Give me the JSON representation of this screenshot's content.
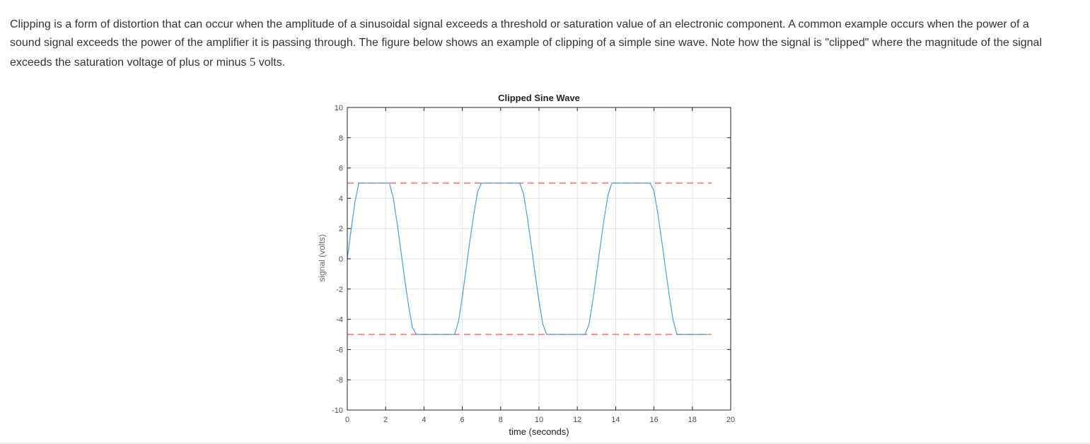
{
  "intro": {
    "text_before": "Clipping is a form of distortion that can occur when the amplitude of a sinusoidal signal exceeds a threshold or saturation value of an electronic component. A common example occurs when the power of a sound signal exceeds the power of the amplifier it is passing through. The figure below shows an example of clipping of a simple sine wave. Note how the signal is \"clipped\" where the magnitude of the signal exceeds the saturation voltage of plus or minus ",
    "value": "5",
    "text_after": " volts."
  },
  "colors": {
    "signal": "#4a9fd6",
    "threshold": "#ff4d4d",
    "grid": "#e3e3e3",
    "axis": "#262626"
  },
  "chart_data": {
    "type": "line",
    "title": "Clipped Sine Wave",
    "xlabel": "time (seconds)",
    "ylabel": "signal (volts)",
    "xlim": [
      0,
      20
    ],
    "ylim": [
      -10,
      10
    ],
    "xticks": [
      "0",
      "2",
      "4",
      "6",
      "8",
      "10",
      "12",
      "14",
      "16",
      "18",
      "20"
    ],
    "yticks": [
      "10",
      "8",
      "6",
      "4",
      "2",
      "0",
      "-2",
      "-4",
      "-6",
      "-8",
      "-10"
    ],
    "grid": true,
    "series": [
      {
        "style": "solid",
        "x": [
          0,
          0.2,
          0.4,
          0.6,
          0.8,
          1.0,
          1.2,
          1.4,
          1.6,
          1.8,
          2.0,
          2.2,
          2.4,
          2.6,
          2.8,
          3.0,
          3.2,
          3.4,
          3.6,
          3.8,
          4.0,
          4.2,
          4.4,
          4.6,
          4.8,
          5.0,
          5.2,
          5.4,
          5.6,
          5.8,
          6.0,
          6.2,
          6.4,
          6.6,
          6.8,
          7.0,
          7.2,
          7.4,
          7.6,
          7.8,
          8.0,
          8.2,
          8.4,
          8.6,
          8.8,
          9.0,
          9.2,
          9.4,
          9.6,
          9.8,
          10.0,
          10.2,
          10.4,
          10.6,
          10.8,
          11.0,
          11.2,
          11.4,
          11.6,
          11.8,
          12.0,
          12.2,
          12.4,
          12.6,
          12.8,
          13.0,
          13.2,
          13.4,
          13.6,
          13.8,
          14.0,
          14.2,
          14.4,
          14.6,
          14.8,
          15.0,
          15.2,
          15.4,
          15.6,
          15.8,
          16.0,
          16.2,
          16.4,
          16.6,
          16.8,
          17.0,
          17.2,
          17.4,
          17.6,
          17.8,
          18.0,
          18.2,
          18.4,
          18.6,
          18.8
        ],
        "y": [
          0,
          1.93,
          3.75,
          5,
          5,
          5,
          5,
          5,
          5,
          5,
          5,
          5,
          4.02,
          2.34,
          0.48,
          -1.4,
          -3.12,
          -4.55,
          -5,
          -5,
          -5,
          -5,
          -5,
          -5,
          -5,
          -5,
          -5,
          -5,
          -5,
          -4.14,
          -2.51,
          -0.67,
          1.22,
          2.96,
          4.44,
          5,
          5,
          5,
          5,
          5,
          5,
          5,
          5,
          5,
          5,
          5,
          4.26,
          2.68,
          0.85,
          -1.03,
          -2.8,
          -4.32,
          -5,
          -5,
          -5,
          -5,
          -5,
          -5,
          -5,
          -5,
          -5,
          -5,
          -5,
          -4.38,
          -2.84,
          -1.04,
          0.85,
          2.63,
          4.21,
          5,
          5,
          5,
          5,
          5,
          5,
          5,
          5,
          5,
          5,
          5,
          4.48,
          2.99,
          1.23,
          -0.66,
          -2.46,
          -4.08,
          -5,
          -5,
          -5,
          -5,
          -5,
          -5,
          -5,
          -5,
          -5
        ]
      },
      {
        "style": "dashed",
        "x": [
          0,
          19
        ],
        "y": [
          5,
          5
        ]
      },
      {
        "style": "dashed",
        "x": [
          0,
          19
        ],
        "y": [
          -5,
          -5
        ]
      }
    ]
  }
}
